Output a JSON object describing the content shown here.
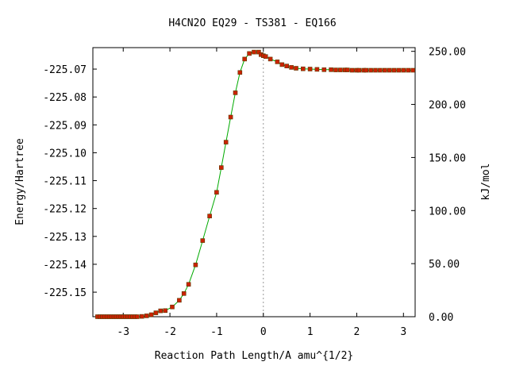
{
  "chart_data": {
    "type": "line",
    "title": "H4CN2O   EQ29 - TS381 - EQ166",
    "xlabel": "Reaction Path Length/A amu^{1/2}",
    "ylabel": "Energy/Hartree",
    "y2label": "kJ/mol",
    "xlim": [
      -3.65,
      3.25
    ],
    "ylim": [
      -225.1588,
      -225.0623
    ],
    "y2lim": [
      0.0,
      253.5
    ],
    "grid": false,
    "legend": "none",
    "transition_state_x": 0.0,
    "x_ticks": [
      -3,
      -2,
      -1,
      0,
      1,
      2,
      3
    ],
    "x_tick_labels": [
      "-3",
      "-2",
      "-1",
      "0",
      "1",
      "2",
      "3"
    ],
    "y_ticks": [
      -225.07,
      -225.08,
      -225.09,
      -225.1,
      -225.11,
      -225.12,
      -225.13,
      -225.14,
      -225.15
    ],
    "y_tick_labels": [
      "-225.07",
      "-225.08",
      "-225.09",
      "-225.10",
      "-225.11",
      "-225.12",
      "-225.13",
      "-225.14",
      "-225.15"
    ],
    "y2_ticks": [
      250,
      200,
      150,
      100,
      50,
      0
    ],
    "y2_tick_labels": [
      "250.00",
      "200.00",
      "150.00",
      "100.00",
      "50.00",
      "0.00"
    ],
    "colors": {
      "line": "#00aa00",
      "marker": "#cc2200",
      "ts_line": "#999999"
    },
    "series": [
      {
        "x": [
          -3.55,
          -3.5,
          -3.45,
          -3.4,
          -3.35,
          -3.3,
          -3.25,
          -3.2,
          -3.15,
          -3.1,
          -3.05,
          -3.0,
          -2.95,
          -2.9,
          -2.85,
          -2.8,
          -2.75,
          -2.7,
          -2.6,
          -2.5,
          -2.4,
          -2.3,
          -2.2,
          -2.1,
          -1.95,
          -1.8,
          -1.7,
          -1.6,
          -1.45,
          -1.3,
          -1.15,
          -1.0,
          -0.9,
          -0.8,
          -0.7,
          -0.6,
          -0.5,
          -0.4,
          -0.3,
          -0.2,
          -0.1,
          -0.05,
          0.0,
          0.05,
          0.15,
          0.3,
          0.4,
          0.5,
          0.6,
          0.7,
          0.85,
          1.0,
          1.15,
          1.3,
          1.45,
          1.55,
          1.65,
          1.75,
          1.8,
          1.9,
          2.0,
          2.05,
          2.15,
          2.2,
          2.3,
          2.4,
          2.5,
          2.6,
          2.7,
          2.8,
          2.9,
          3.0,
          3.1,
          3.2
        ],
        "y": [
          -225.1588,
          -225.1588,
          -225.1588,
          -225.1588,
          -225.1588,
          -225.1588,
          -225.1588,
          -225.1588,
          -225.1588,
          -225.1588,
          -225.1588,
          -225.1588,
          -225.1588,
          -225.1588,
          -225.1588,
          -225.1588,
          -225.1588,
          -225.1588,
          -225.1587,
          -225.1585,
          -225.1581,
          -225.1574,
          -225.1567,
          -225.1566,
          -225.1553,
          -225.1529,
          -225.1505,
          -225.1472,
          -225.1402,
          -225.1315,
          -225.1227,
          -225.1142,
          -225.1053,
          -225.0962,
          -225.0872,
          -225.0785,
          -225.0712,
          -225.0664,
          -225.0644,
          -225.0639,
          -225.0639,
          -225.0648,
          -225.0652,
          -225.0655,
          -225.0664,
          -225.0674,
          -225.0684,
          -225.0689,
          -225.0694,
          -225.0697,
          -225.0699,
          -225.07,
          -225.0701,
          -225.0702,
          -225.0702,
          -225.0703,
          -225.0703,
          -225.0703,
          -225.0703,
          -225.0704,
          -225.0704,
          -225.0704,
          -225.0704,
          -225.0704,
          -225.0704,
          -225.0704,
          -225.0704,
          -225.0704,
          -225.0704,
          -225.0704,
          -225.0704,
          -225.0704,
          -225.0704,
          -225.0704
        ]
      }
    ]
  }
}
